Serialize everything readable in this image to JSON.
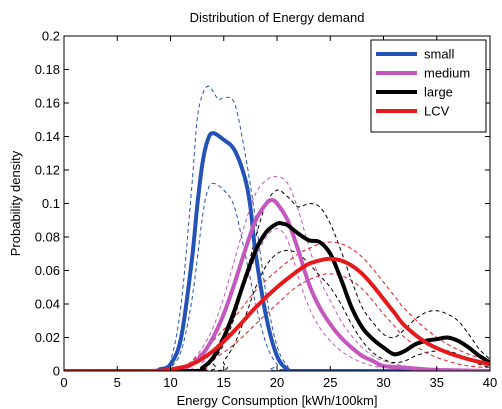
{
  "chart_data": {
    "type": "line",
    "title": "Distribution of Energy demand",
    "xlabel": "Energy Consumption [kWh/100km]",
    "ylabel": "Probability density",
    "xlim": [
      0,
      40
    ],
    "ylim": [
      0,
      0.2
    ],
    "xticks": [
      "0",
      "5",
      "10",
      "15",
      "20",
      "25",
      "30",
      "35",
      "40"
    ],
    "yticks": [
      "0",
      "0.02",
      "0.04",
      "0.06",
      "0.08",
      "0.1",
      "0.12",
      "0.14",
      "0.16",
      "0.18",
      "0.2"
    ],
    "xtick_values": [
      0,
      5,
      10,
      15,
      20,
      25,
      30,
      35,
      40
    ],
    "ytick_values": [
      0,
      0.02,
      0.04,
      0.06,
      0.08,
      0.1,
      0.12,
      0.14,
      0.16,
      0.18,
      0.2
    ],
    "legend_placement": "top-right",
    "grid": false,
    "series": [
      {
        "name": "small",
        "color": "#2453b8",
        "x": [
          0,
          8,
          9,
          10,
          11,
          12,
          12.5,
          13,
          13.5,
          14,
          15,
          16,
          17,
          17.5,
          18,
          19,
          20,
          21,
          22,
          40
        ],
        "y": [
          0,
          0,
          0.001,
          0.004,
          0.02,
          0.066,
          0.098,
          0.124,
          0.138,
          0.142,
          0.138,
          0.132,
          0.115,
          0.098,
          0.07,
          0.032,
          0.009,
          0.001,
          0,
          0
        ],
        "band_upper": {
          "x": [
            0,
            9,
            10,
            11,
            12,
            12.5,
            13,
            13.5,
            14,
            14.5,
            15,
            16,
            17,
            18,
            19,
            20,
            21,
            22,
            40
          ],
          "y": [
            0,
            0,
            0.006,
            0.04,
            0.11,
            0.15,
            0.165,
            0.17,
            0.167,
            0.162,
            0.163,
            0.16,
            0.13,
            0.09,
            0.045,
            0.015,
            0.003,
            0,
            0
          ]
        },
        "band_lower": {
          "x": [
            0,
            9,
            10,
            11,
            12,
            13,
            13.5,
            14,
            15,
            16,
            17,
            18,
            19,
            20,
            21,
            40
          ],
          "y": [
            0,
            0,
            0.002,
            0.012,
            0.042,
            0.092,
            0.108,
            0.112,
            0.108,
            0.098,
            0.07,
            0.04,
            0.016,
            0.004,
            0,
            0
          ]
        }
      },
      {
        "name": "medium",
        "color": "#c457bd",
        "x": [
          0,
          10,
          11,
          12,
          13,
          14,
          15,
          16,
          17,
          18,
          19,
          19.5,
          20,
          21,
          22,
          23,
          24,
          25,
          26,
          27,
          28,
          29,
          30,
          32,
          34,
          36,
          38,
          40
        ],
        "y": [
          0,
          0,
          0.001,
          0.004,
          0.01,
          0.02,
          0.034,
          0.052,
          0.072,
          0.09,
          0.1,
          0.102,
          0.1,
          0.09,
          0.072,
          0.052,
          0.038,
          0.028,
          0.02,
          0.014,
          0.009,
          0.006,
          0.003,
          0.002,
          0.001,
          0.0005,
          0.0002,
          0
        ]
      },
      {
        "name": "large",
        "color": "#000000",
        "x": [
          0,
          12,
          13,
          14,
          15,
          16,
          17,
          18,
          19,
          20,
          20.5,
          21,
          22,
          23,
          24,
          25,
          26,
          27,
          28,
          29,
          30,
          31,
          32,
          33,
          34,
          35,
          36,
          37,
          38,
          39,
          40
        ],
        "y": [
          0,
          0,
          0.002,
          0.008,
          0.02,
          0.036,
          0.055,
          0.072,
          0.083,
          0.088,
          0.088,
          0.087,
          0.082,
          0.078,
          0.077,
          0.07,
          0.055,
          0.038,
          0.026,
          0.019,
          0.014,
          0.01,
          0.012,
          0.016,
          0.018,
          0.019,
          0.02,
          0.018,
          0.014,
          0.009,
          0.005
        ]
      },
      {
        "name": "LCV",
        "color": "#e41a1c",
        "x": [
          0,
          8,
          10,
          12,
          14,
          16,
          18,
          20,
          22,
          23,
          24,
          25,
          26,
          27,
          28,
          29,
          30,
          31,
          32,
          34,
          36,
          38,
          40
        ],
        "y": [
          0,
          0,
          0.001,
          0.004,
          0.012,
          0.024,
          0.038,
          0.05,
          0.06,
          0.064,
          0.066,
          0.067,
          0.066,
          0.063,
          0.058,
          0.051,
          0.043,
          0.035,
          0.027,
          0.017,
          0.011,
          0.007,
          0.004
        ]
      }
    ],
    "bands": [
      {
        "series": "medium",
        "color": "#c457bd",
        "upper": {
          "x": [
            0,
            11,
            12,
            13,
            14,
            15,
            16,
            17,
            18,
            19,
            20,
            21,
            22,
            23,
            24,
            25,
            26,
            27,
            28,
            29,
            30,
            32,
            34,
            40
          ],
          "y": [
            0,
            0,
            0.006,
            0.014,
            0.026,
            0.044,
            0.066,
            0.088,
            0.106,
            0.114,
            0.116,
            0.112,
            0.096,
            0.074,
            0.055,
            0.042,
            0.03,
            0.021,
            0.014,
            0.009,
            0.006,
            0.003,
            0.001,
            0
          ]
        },
        "lower": {
          "x": [
            0,
            12,
            13,
            14,
            15,
            16,
            17,
            18,
            19,
            20,
            21,
            22,
            23,
            24,
            25,
            26,
            27,
            28,
            29,
            30,
            32,
            34,
            40
          ],
          "y": [
            0,
            0,
            0.005,
            0.012,
            0.022,
            0.036,
            0.052,
            0.068,
            0.08,
            0.085,
            0.078,
            0.056,
            0.038,
            0.026,
            0.018,
            0.012,
            0.008,
            0.005,
            0.003,
            0.002,
            0.001,
            0,
            0
          ]
        }
      },
      {
        "series": "large",
        "color": "#000000",
        "upper": {
          "x": [
            0,
            13,
            14,
            15,
            16,
            17,
            18,
            19,
            20,
            21,
            22,
            23,
            24,
            25,
            26,
            27,
            28,
            29,
            30,
            31,
            32,
            33,
            34,
            35,
            36,
            37,
            38,
            39,
            40
          ],
          "y": [
            0,
            0,
            0.006,
            0.016,
            0.032,
            0.055,
            0.08,
            0.1,
            0.108,
            0.104,
            0.098,
            0.1,
            0.098,
            0.088,
            0.072,
            0.054,
            0.038,
            0.029,
            0.022,
            0.02,
            0.025,
            0.031,
            0.035,
            0.036,
            0.034,
            0.03,
            0.022,
            0.013,
            0.007
          ]
        },
        "lower": {
          "x": [
            0,
            14,
            15,
            16,
            17,
            18,
            19,
            20,
            21,
            22,
            23,
            24,
            25,
            26,
            27,
            28,
            29,
            30,
            31,
            32,
            33,
            34,
            35,
            36,
            37,
            38,
            39,
            40
          ],
          "y": [
            0,
            0,
            0.006,
            0.016,
            0.032,
            0.05,
            0.063,
            0.07,
            0.072,
            0.07,
            0.064,
            0.057,
            0.05,
            0.04,
            0.028,
            0.018,
            0.011,
            0.007,
            0.005,
            0.006,
            0.009,
            0.011,
            0.012,
            0.012,
            0.01,
            0.007,
            0.004,
            0.002
          ]
        }
      },
      {
        "series": "LCV",
        "color": "#e41a1c",
        "upper": {
          "x": [
            0,
            10,
            12,
            14,
            16,
            18,
            20,
            22,
            23,
            24,
            25,
            26,
            27,
            28,
            29,
            30,
            31,
            32,
            34,
            36,
            38,
            40
          ],
          "y": [
            0,
            0,
            0.006,
            0.018,
            0.032,
            0.048,
            0.06,
            0.07,
            0.073,
            0.076,
            0.077,
            0.076,
            0.073,
            0.068,
            0.061,
            0.053,
            0.045,
            0.037,
            0.025,
            0.016,
            0.01,
            0.006
          ]
        },
        "lower": {
          "x": [
            0,
            12,
            14,
            16,
            18,
            20,
            22,
            24,
            25,
            26,
            27,
            28,
            29,
            30,
            31,
            32,
            34,
            36,
            38,
            40
          ],
          "y": [
            0,
            0,
            0.007,
            0.016,
            0.028,
            0.04,
            0.051,
            0.057,
            0.058,
            0.057,
            0.054,
            0.049,
            0.042,
            0.034,
            0.027,
            0.02,
            0.011,
            0.006,
            0.003,
            0.002
          ]
        }
      }
    ]
  }
}
